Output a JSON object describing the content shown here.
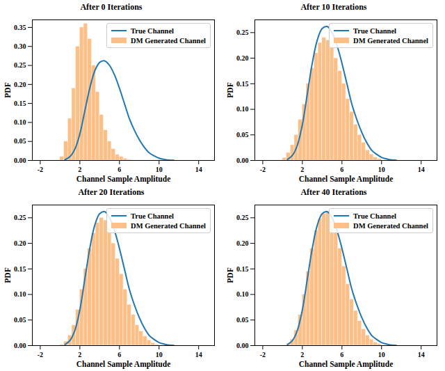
{
  "chart_data": [
    {
      "type": "histogram",
      "title": "After 0 Iterations",
      "x_label": "Channel Sample Amplitude",
      "y_label": "PDF",
      "xlim": [
        -2.8,
        15.6
      ],
      "xticks": [
        -2,
        2,
        6,
        10,
        14
      ],
      "ylim": [
        0,
        0.37
      ],
      "yticks": [
        {
          "value": 0,
          "label": "0.00"
        },
        {
          "value": 0.05,
          "label": "0.05"
        },
        {
          "value": 0.1,
          "label": "0.10"
        },
        {
          "value": 0.15,
          "label": "0.15"
        },
        {
          "value": 0.2,
          "label": "0.20"
        },
        {
          "value": 0.25,
          "label": "0.25"
        },
        {
          "value": 0.3,
          "label": "0.30"
        },
        {
          "value": 0.35,
          "label": "0.35"
        }
      ],
      "legend": "top-right",
      "series": [
        {
          "name": "True Channel",
          "type": "line",
          "color": "#1f77b4",
          "x": [
            0.5,
            1,
            1.5,
            2,
            2.5,
            3,
            3.5,
            4,
            4.5,
            5,
            5.5,
            6,
            6.5,
            7,
            7.5,
            8,
            8.5,
            9,
            9.5,
            10,
            10.5,
            11,
            11.5
          ],
          "values": [
            0.002,
            0.01,
            0.03,
            0.07,
            0.13,
            0.19,
            0.235,
            0.258,
            0.262,
            0.25,
            0.225,
            0.19,
            0.15,
            0.11,
            0.08,
            0.055,
            0.035,
            0.02,
            0.012,
            0.006,
            0.003,
            0.001,
            0.0005
          ]
        },
        {
          "name": "DM Generated Channel",
          "type": "histogram",
          "color": "#fdbf86",
          "bins": [
            0,
            0.4,
            0.8,
            1.2,
            1.6,
            2.0,
            2.4,
            2.8,
            3.2,
            3.6,
            4.0,
            4.4,
            4.8,
            5.2,
            5.6,
            6.0,
            6.4,
            6.8,
            7.2
          ],
          "values": [
            0.01,
            0.05,
            0.11,
            0.19,
            0.3,
            0.35,
            0.36,
            0.32,
            0.25,
            0.18,
            0.12,
            0.08,
            0.05,
            0.03,
            0.015,
            0.01,
            0.005,
            0.002
          ]
        }
      ]
    },
    {
      "type": "histogram",
      "title": "After 10 Iterations",
      "x_label": "Channel Sample Amplitude",
      "y_label": "PDF",
      "xlim": [
        -2.8,
        15.6
      ],
      "xticks": [
        -2,
        2,
        6,
        10,
        14
      ],
      "ylim": [
        0,
        0.275
      ],
      "yticks": [
        {
          "value": 0,
          "label": "0.00"
        },
        {
          "value": 0.05,
          "label": "0.05"
        },
        {
          "value": 0.1,
          "label": "0.10"
        },
        {
          "value": 0.15,
          "label": "0.15"
        },
        {
          "value": 0.2,
          "label": "0.20"
        },
        {
          "value": 0.25,
          "label": "0.25"
        }
      ],
      "legend": "top-right",
      "series": [
        {
          "name": "True Channel",
          "type": "line",
          "color": "#1f77b4",
          "x": [
            0.5,
            1,
            1.5,
            2,
            2.5,
            3,
            3.5,
            4,
            4.5,
            5,
            5.5,
            6,
            6.5,
            7,
            7.5,
            8,
            8.5,
            9,
            9.5,
            10,
            10.5,
            11,
            11.5
          ],
          "values": [
            0.002,
            0.01,
            0.03,
            0.07,
            0.13,
            0.19,
            0.235,
            0.258,
            0.262,
            0.25,
            0.225,
            0.19,
            0.15,
            0.11,
            0.08,
            0.055,
            0.035,
            0.02,
            0.012,
            0.006,
            0.003,
            0.001,
            0.0005
          ]
        },
        {
          "name": "DM Generated Channel",
          "type": "histogram",
          "color": "#fdbf86",
          "bins": [
            0,
            0.4,
            0.8,
            1.2,
            1.6,
            2.0,
            2.4,
            2.8,
            3.2,
            3.6,
            4.0,
            4.4,
            4.8,
            5.2,
            5.6,
            6.0,
            6.4,
            6.8,
            7.2,
            7.6,
            8.0,
            8.4,
            8.8,
            9.2,
            9.6,
            10.0
          ],
          "values": [
            0.005,
            0.015,
            0.03,
            0.05,
            0.08,
            0.11,
            0.15,
            0.18,
            0.21,
            0.23,
            0.24,
            0.235,
            0.22,
            0.2,
            0.175,
            0.15,
            0.12,
            0.095,
            0.07,
            0.05,
            0.035,
            0.02,
            0.012,
            0.006,
            0.003
          ]
        }
      ]
    },
    {
      "type": "histogram",
      "title": "After 20 Iterations",
      "x_label": "Channel Sample Amplitude",
      "y_label": "PDF",
      "xlim": [
        -2.8,
        15.6
      ],
      "xticks": [
        -2,
        2,
        6,
        10,
        14
      ],
      "ylim": [
        0,
        0.275
      ],
      "yticks": [
        {
          "value": 0,
          "label": "0.00"
        },
        {
          "value": 0.05,
          "label": "0.05"
        },
        {
          "value": 0.1,
          "label": "0.10"
        },
        {
          "value": 0.15,
          "label": "0.15"
        },
        {
          "value": 0.2,
          "label": "0.20"
        },
        {
          "value": 0.25,
          "label": "0.25"
        }
      ],
      "legend": "top-right",
      "series": [
        {
          "name": "True Channel",
          "type": "line",
          "color": "#1f77b4",
          "x": [
            0.5,
            1,
            1.5,
            2,
            2.5,
            3,
            3.5,
            4,
            4.5,
            5,
            5.5,
            6,
            6.5,
            7,
            7.5,
            8,
            8.5,
            9,
            9.5,
            10,
            10.5,
            11,
            11.5
          ],
          "values": [
            0.002,
            0.01,
            0.03,
            0.07,
            0.13,
            0.19,
            0.235,
            0.258,
            0.262,
            0.25,
            0.225,
            0.19,
            0.15,
            0.11,
            0.08,
            0.055,
            0.035,
            0.02,
            0.012,
            0.006,
            0.003,
            0.001,
            0.0005
          ]
        },
        {
          "name": "DM Generated Channel",
          "type": "histogram",
          "color": "#fdbf86",
          "bins": [
            0,
            0.4,
            0.8,
            1.2,
            1.6,
            2.0,
            2.4,
            2.8,
            3.2,
            3.6,
            4.0,
            4.4,
            4.8,
            5.2,
            5.6,
            6.0,
            6.4,
            6.8,
            7.2,
            7.6,
            8.0,
            8.4,
            8.8,
            9.2,
            9.6,
            10.0,
            10.4
          ],
          "values": [
            0.002,
            0.008,
            0.02,
            0.04,
            0.07,
            0.11,
            0.15,
            0.19,
            0.22,
            0.24,
            0.25,
            0.245,
            0.23,
            0.2,
            0.17,
            0.14,
            0.11,
            0.08,
            0.06,
            0.04,
            0.028,
            0.018,
            0.01,
            0.005,
            0.002,
            0.001
          ]
        }
      ]
    },
    {
      "type": "histogram",
      "title": "After 40 Iterations",
      "x_label": "Channel Sample Amplitude",
      "y_label": "PDF",
      "xlim": [
        -2.8,
        15.6
      ],
      "xticks": [
        -2,
        2,
        6,
        10,
        14
      ],
      "ylim": [
        0,
        0.275
      ],
      "yticks": [
        {
          "value": 0,
          "label": "0.00"
        },
        {
          "value": 0.05,
          "label": "0.05"
        },
        {
          "value": 0.1,
          "label": "0.10"
        },
        {
          "value": 0.15,
          "label": "0.15"
        },
        {
          "value": 0.2,
          "label": "0.20"
        },
        {
          "value": 0.25,
          "label": "0.25"
        }
      ],
      "legend": "top-right",
      "series": [
        {
          "name": "True Channel",
          "type": "line",
          "color": "#1f77b4",
          "x": [
            0.5,
            1,
            1.5,
            2,
            2.5,
            3,
            3.5,
            4,
            4.5,
            5,
            5.5,
            6,
            6.5,
            7,
            7.5,
            8,
            8.5,
            9,
            9.5,
            10,
            10.5,
            11,
            11.5
          ],
          "values": [
            0.002,
            0.01,
            0.03,
            0.07,
            0.13,
            0.19,
            0.235,
            0.258,
            0.262,
            0.25,
            0.225,
            0.19,
            0.15,
            0.11,
            0.08,
            0.055,
            0.035,
            0.02,
            0.012,
            0.006,
            0.003,
            0.001,
            0.0005
          ]
        },
        {
          "name": "DM Generated Channel",
          "type": "histogram",
          "color": "#fdbf86",
          "bins": [
            0,
            0.4,
            0.8,
            1.2,
            1.6,
            2.0,
            2.4,
            2.8,
            3.2,
            3.6,
            4.0,
            4.4,
            4.8,
            5.2,
            5.6,
            6.0,
            6.4,
            6.8,
            7.2,
            7.6,
            8.0,
            8.4,
            8.8,
            9.2,
            9.6,
            10.0,
            10.4
          ],
          "values": [
            0.001,
            0.004,
            0.012,
            0.03,
            0.06,
            0.1,
            0.145,
            0.19,
            0.225,
            0.248,
            0.258,
            0.26,
            0.245,
            0.22,
            0.19,
            0.155,
            0.12,
            0.09,
            0.068,
            0.048,
            0.032,
            0.02,
            0.012,
            0.006,
            0.003,
            0.001
          ]
        }
      ]
    }
  ]
}
